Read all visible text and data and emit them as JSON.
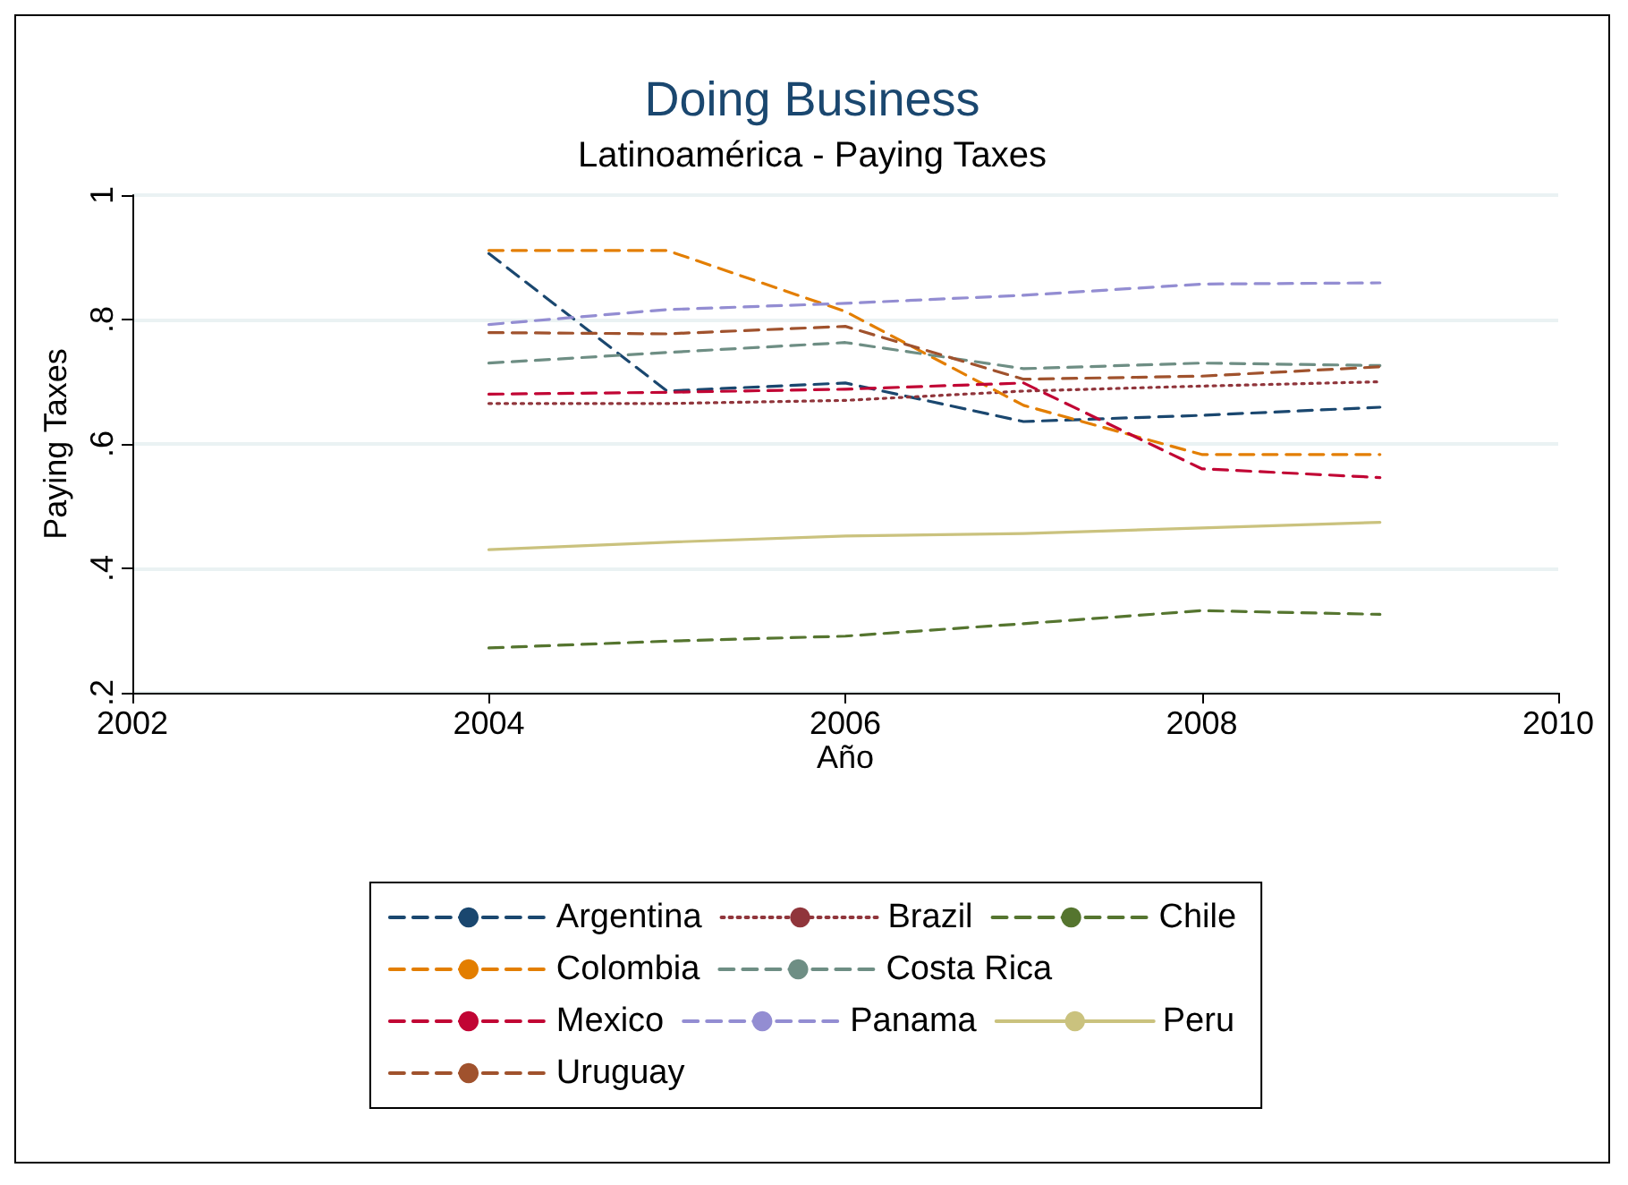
{
  "chart_data": {
    "type": "line",
    "title": "Doing Business",
    "subtitle": "Latinoamérica - Paying Taxes",
    "xlabel": "Año",
    "ylabel": "Paying Taxes",
    "x": [
      2004,
      2005,
      2006,
      2007,
      2008,
      2009
    ],
    "xlim": [
      2002,
      2010
    ],
    "xticks": [
      2002,
      2004,
      2006,
      2008,
      2010
    ],
    "ylim": [
      0.2,
      1
    ],
    "yticks": [
      {
        "value": 0.2,
        "label": ".2"
      },
      {
        "value": 0.4,
        "label": ".4"
      },
      {
        "value": 0.6,
        "label": ".6"
      },
      {
        "value": 0.8,
        "label": ".8"
      },
      {
        "value": 1,
        "label": "1"
      }
    ],
    "grid": "y",
    "legend": "bottom",
    "marker": "none",
    "series": [
      {
        "name": "Argentina",
        "color": "#1a476f",
        "line_style": "dashed",
        "values": [
          0.906,
          0.685,
          0.698,
          0.636,
          0.646,
          0.659
        ]
      },
      {
        "name": "Brazil",
        "color": "#90353b",
        "line_style": "dotted",
        "values": [
          0.665,
          0.665,
          0.67,
          0.685,
          0.693,
          0.7
        ]
      },
      {
        "name": "Chile",
        "color": "#55752f",
        "line_style": "dashed",
        "values": [
          0.272,
          0.283,
          0.291,
          0.311,
          0.332,
          0.326
        ]
      },
      {
        "name": "Colombia",
        "color": "#e37e00",
        "line_style": "dashed",
        "values": [
          0.911,
          0.911,
          0.813,
          0.662,
          0.583,
          0.583
        ]
      },
      {
        "name": "Costa Rica",
        "color": "#6e8e84",
        "line_style": "dashed",
        "values": [
          0.73,
          0.747,
          0.763,
          0.721,
          0.73,
          0.726
        ]
      },
      {
        "name": "Mexico",
        "color": "#c10534",
        "line_style": "dashed",
        "values": [
          0.68,
          0.683,
          0.688,
          0.698,
          0.56,
          0.546
        ]
      },
      {
        "name": "Panama",
        "color": "#938dd2",
        "line_style": "dashed",
        "values": [
          0.792,
          0.816,
          0.826,
          0.839,
          0.857,
          0.859
        ]
      },
      {
        "name": "Peru",
        "color": "#cac27e",
        "line_style": "solid",
        "values": [
          0.43,
          0.442,
          0.452,
          0.456,
          0.465,
          0.474
        ]
      },
      {
        "name": "Uruguay",
        "color": "#a0522d",
        "line_style": "dashed",
        "values": [
          0.779,
          0.777,
          0.789,
          0.704,
          0.709,
          0.724
        ]
      }
    ]
  }
}
